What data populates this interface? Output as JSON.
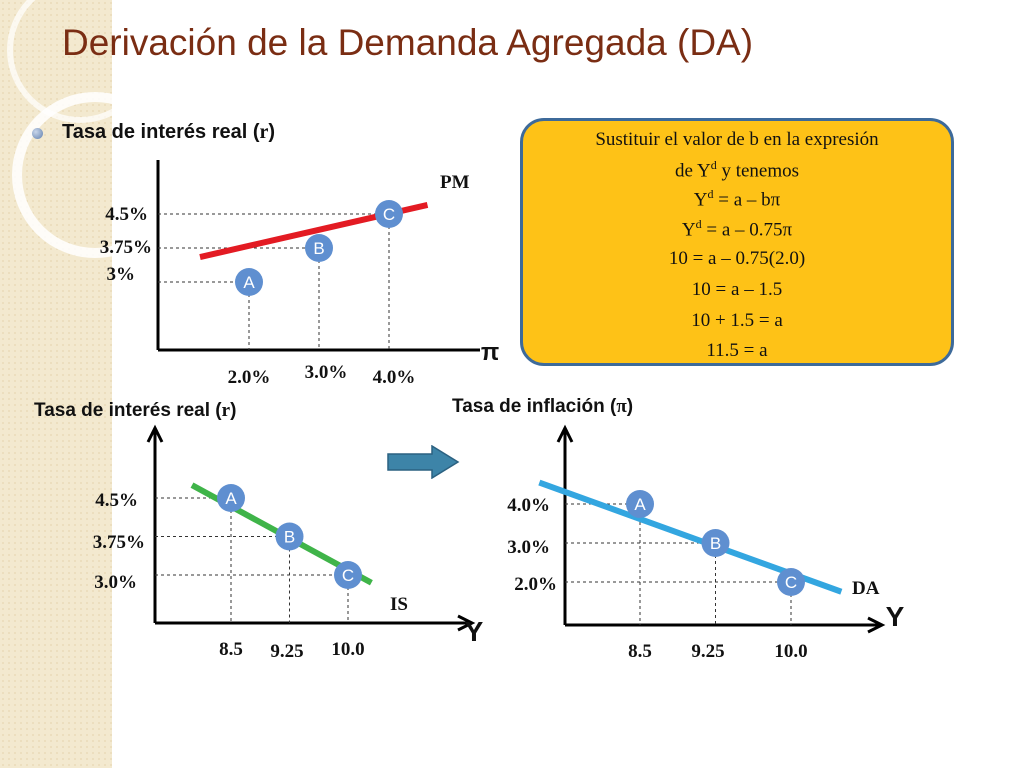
{
  "slide": {
    "title": "Derivación de la Demanda Agregada (DA)",
    "colors": {
      "title": "#7a2d13",
      "pm": "#e31b23",
      "is": "#3fb449",
      "da": "#33a6e0",
      "points": "#5f8fd0",
      "box": "#fec217",
      "box_border": "#3d6a9a",
      "arrow": "#3d84a8"
    }
  },
  "top_label": {
    "text": "Tasa de interés real  (",
    "r": "r",
    "close": ")"
  },
  "box": {
    "line1": "Sustituir el valor de b en la expresión",
    "line2_pre": "de Y",
    "line2_sup": "d",
    "line2_post": " y tenemos",
    "line3_pre": "Y",
    "line3_sup": "d",
    "line3_post": " = a – bπ",
    "line4_pre": "Y",
    "line4_sup": "d",
    "line4_post": " = a – 0.75π",
    "line5": "10 = a – 0.75(2.0)",
    "line6": "10 = a – 1.5",
    "line7": "10 + 1.5 = a",
    "line8": "11.5 = a"
  },
  "bottom_left_label": {
    "text": "Tasa de interés real  (",
    "r": "r",
    "close": ")"
  },
  "bottom_right_label": {
    "text": "Tasa de inflación (",
    "pi": "π",
    "close": ")"
  },
  "arrow": {
    "icon": "right-arrow-icon"
  },
  "chart_data": [
    {
      "type": "line",
      "curve_label": "PM",
      "xlabel": "π",
      "ylabel": "Tasa de interés real  (r)",
      "x_ticks": [
        "2.0%",
        "3.0%",
        "4.0%"
      ],
      "y_ticks": [
        "4.5%",
        "3.75%",
        "3%"
      ],
      "points": [
        {
          "label": "A",
          "x": 2.0,
          "y": 3.0
        },
        {
          "label": "B",
          "x": 3.0,
          "y": 3.75
        },
        {
          "label": "C",
          "x": 4.0,
          "y": 4.5
        }
      ],
      "color": "#e31b23"
    },
    {
      "type": "line",
      "curve_label": "IS",
      "xlabel": "Y",
      "ylabel": "Tasa de interés real  (r)",
      "x_ticks": [
        "8.5",
        "9.25",
        "10.0"
      ],
      "y_ticks": [
        "4.5%",
        "3.75%",
        "3.0%"
      ],
      "points": [
        {
          "label": "A",
          "x": 8.5,
          "y": 4.5
        },
        {
          "label": "B",
          "x": 9.25,
          "y": 3.75
        },
        {
          "label": "C",
          "x": 10.0,
          "y": 3.0
        }
      ],
      "color": "#3fb449"
    },
    {
      "type": "line",
      "curve_label": "DA",
      "xlabel": "Y",
      "ylabel": "Tasa de inflación (π)",
      "x_ticks": [
        "8.5",
        "9.25",
        "10.0"
      ],
      "y_ticks": [
        "4.0%",
        "3.0%",
        "2.0%"
      ],
      "points": [
        {
          "label": "A",
          "x": 8.5,
          "y": 4.0
        },
        {
          "label": "B",
          "x": 9.25,
          "y": 3.0
        },
        {
          "label": "C",
          "x": 10.0,
          "y": 2.0
        }
      ],
      "color": "#33a6e0"
    }
  ]
}
